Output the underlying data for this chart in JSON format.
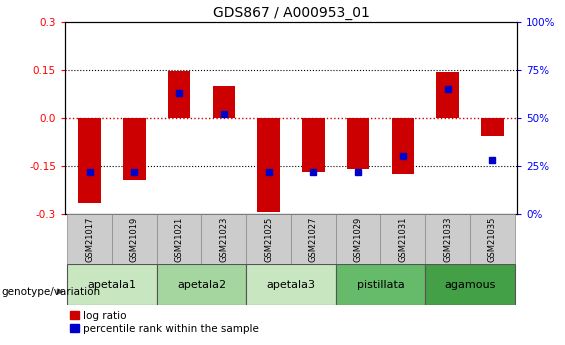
{
  "title": "GDS867 / A000953_01",
  "samples": [
    "GSM21017",
    "GSM21019",
    "GSM21021",
    "GSM21023",
    "GSM21025",
    "GSM21027",
    "GSM21029",
    "GSM21031",
    "GSM21033",
    "GSM21035"
  ],
  "log_ratios": [
    -0.265,
    -0.195,
    0.148,
    0.1,
    -0.295,
    -0.168,
    -0.16,
    -0.175,
    0.145,
    -0.055
  ],
  "percentile_ranks": [
    22,
    22,
    63,
    52,
    22,
    22,
    22,
    30,
    65,
    28
  ],
  "groups": [
    {
      "name": "apetala1",
      "samples": [
        "GSM21017",
        "GSM21019"
      ],
      "color": "#c8e6c0"
    },
    {
      "name": "apetala2",
      "samples": [
        "GSM21021",
        "GSM21023"
      ],
      "color": "#a5d6a0"
    },
    {
      "name": "apetala3",
      "samples": [
        "GSM21025",
        "GSM21027"
      ],
      "color": "#c8e6c0"
    },
    {
      "name": "pistillata",
      "samples": [
        "GSM21029",
        "GSM21031"
      ],
      "color": "#66bb6a"
    },
    {
      "name": "agamous",
      "samples": [
        "GSM21033",
        "GSM21035"
      ],
      "color": "#43a047"
    }
  ],
  "ylim": [
    -0.3,
    0.3
  ],
  "yticks_left": [
    -0.3,
    -0.15,
    0.0,
    0.15,
    0.3
  ],
  "yticks_right": [
    0,
    25,
    50,
    75,
    100
  ],
  "bar_color": "#cc0000",
  "dot_color": "#0000cc",
  "hline_color": "#cc0000",
  "dotted_color": "#000000",
  "bar_width": 0.5,
  "sample_box_color": "#cccccc",
  "sample_box_edge": "#888888"
}
